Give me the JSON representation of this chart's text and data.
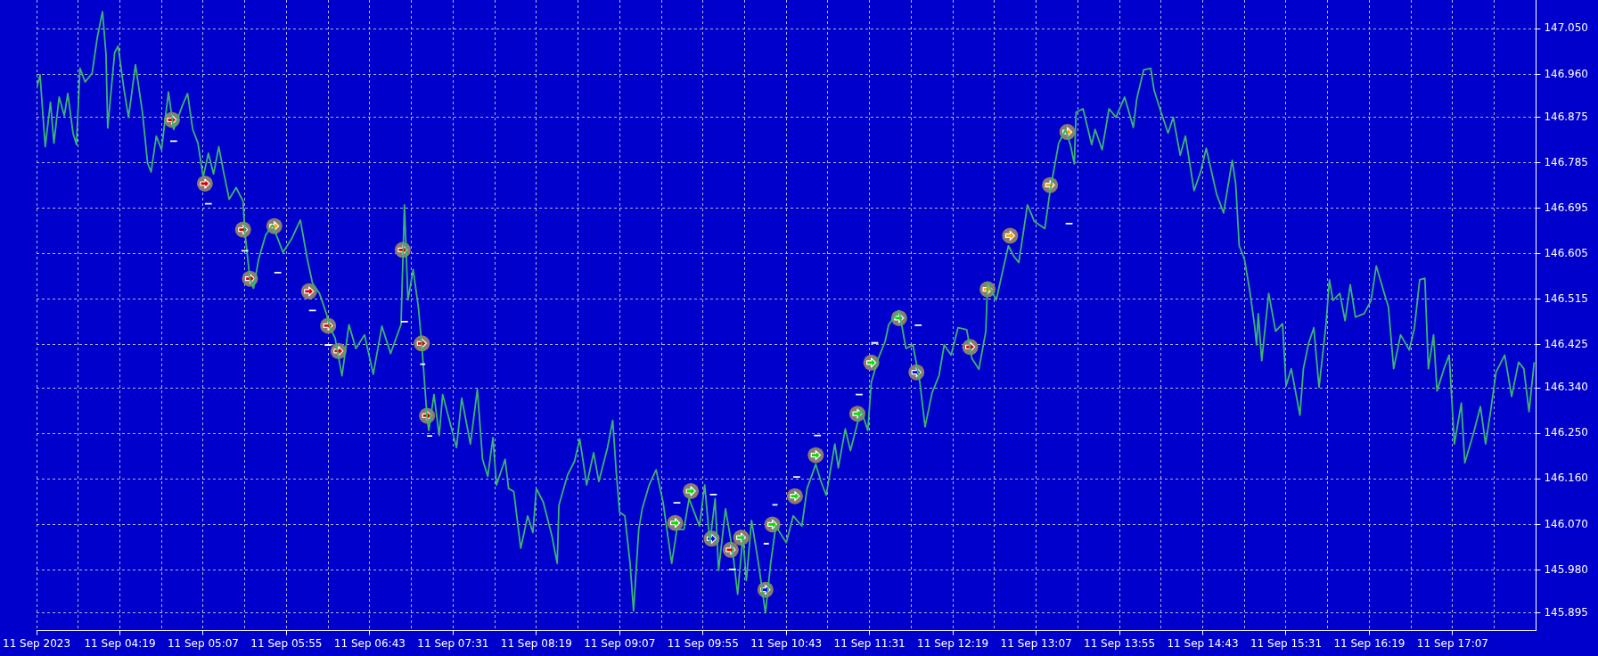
{
  "chart_data": {
    "type": "line",
    "xlim": [
      "2023-09-11T03:31",
      "2023-09-11T17:55"
    ],
    "xticks": [
      {
        "value": "2023-09-11T03:31",
        "label": "11 Sep 2023"
      },
      {
        "value": "2023-09-11T03:55",
        "label": null
      },
      {
        "value": "2023-09-11T04:19",
        "label": "11 Sep 04:19"
      },
      {
        "value": "2023-09-11T04:43",
        "label": null
      },
      {
        "value": "2023-09-11T05:07",
        "label": "11 Sep 05:07"
      },
      {
        "value": "2023-09-11T05:31",
        "label": null
      },
      {
        "value": "2023-09-11T05:55",
        "label": "11 Sep 05:55"
      },
      {
        "value": "2023-09-11T06:19",
        "label": null
      },
      {
        "value": "2023-09-11T06:43",
        "label": "11 Sep 06:43"
      },
      {
        "value": "2023-09-11T07:07",
        "label": null
      },
      {
        "value": "2023-09-11T07:31",
        "label": "11 Sep 07:31"
      },
      {
        "value": "2023-09-11T07:55",
        "label": null
      },
      {
        "value": "2023-09-11T08:19",
        "label": "11 Sep 08:19"
      },
      {
        "value": "2023-09-11T08:43",
        "label": null
      },
      {
        "value": "2023-09-11T09:07",
        "label": "11 Sep 09:07"
      },
      {
        "value": "2023-09-11T09:31",
        "label": null
      },
      {
        "value": "2023-09-11T09:55",
        "label": "11 Sep 09:55"
      },
      {
        "value": "2023-09-11T10:19",
        "label": null
      },
      {
        "value": "2023-09-11T10:43",
        "label": "11 Sep 10:43"
      },
      {
        "value": "2023-09-11T11:07",
        "label": null
      },
      {
        "value": "2023-09-11T11:31",
        "label": "11 Sep 11:31"
      },
      {
        "value": "2023-09-11T11:55",
        "label": null
      },
      {
        "value": "2023-09-11T12:19",
        "label": "11 Sep 12:19"
      },
      {
        "value": "2023-09-11T12:43",
        "label": null
      },
      {
        "value": "2023-09-11T13:07",
        "label": "11 Sep 13:07"
      },
      {
        "value": "2023-09-11T13:31",
        "label": null
      },
      {
        "value": "2023-09-11T13:55",
        "label": "11 Sep 13:55"
      },
      {
        "value": "2023-09-11T14:19",
        "label": null
      },
      {
        "value": "2023-09-11T14:43",
        "label": "11 Sep 14:43"
      },
      {
        "value": "2023-09-11T15:07",
        "label": null
      },
      {
        "value": "2023-09-11T15:31",
        "label": "11 Sep 15:31"
      },
      {
        "value": "2023-09-11T15:55",
        "label": null
      },
      {
        "value": "2023-09-11T16:19",
        "label": "11 Sep 16:19"
      },
      {
        "value": "2023-09-11T16:43",
        "label": null
      },
      {
        "value": "2023-09-11T17:07",
        "label": "11 Sep 17:07"
      },
      {
        "value": "2023-09-11T17:31",
        "label": null
      }
    ],
    "ylim": [
      145.86,
      147.107
    ],
    "yticks": [
      145.895,
      {
        "value": 145.98,
        "label": "145.980"
      },
      {
        "value": 146.07,
        "label": "146.070"
      },
      {
        "value": 146.16,
        "label": "146.160"
      },
      {
        "value": 146.25,
        "label": "146.250"
      },
      {
        "value": 146.34,
        "label": "146.340"
      },
      146.425,
      146.515,
      146.605,
      146.695,
      146.785,
      146.875,
      {
        "value": 146.96,
        "label": "146.960"
      },
      {
        "value": 147.05,
        "label": "147.050"
      }
    ],
    "grid": true,
    "x": [
      "2023-09-11T03:31",
      "2023-09-11T03:33",
      "2023-09-11T03:36",
      "2023-09-11T03:39",
      "2023-09-11T03:41",
      "2023-09-11T03:44",
      "2023-09-11T03:47",
      "2023-09-11T03:49",
      "2023-09-11T03:52",
      "2023-09-11T03:54",
      "2023-09-11T03:56",
      "2023-09-11T03:59",
      "2023-09-11T04:03",
      "2023-09-11T04:06",
      "2023-09-11T04:09",
      "2023-09-11T04:11",
      "2023-09-11T04:12",
      "2023-09-11T04:16",
      "2023-09-11T04:18",
      "2023-09-11T04:21",
      "2023-09-11T04:24",
      "2023-09-11T04:28",
      "2023-09-11T04:32",
      "2023-09-11T04:35",
      "2023-09-11T04:37",
      "2023-09-11T04:40",
      "2023-09-11T04:43",
      "2023-09-11T04:47",
      "2023-09-11T04:50",
      "2023-09-11T04:55",
      "2023-09-11T04:58",
      "2023-09-11T05:01",
      "2023-09-11T05:04",
      "2023-09-11T05:07",
      "2023-09-11T05:10",
      "2023-09-11T05:13",
      "2023-09-11T05:16",
      "2023-09-11T05:19",
      "2023-09-11T05:22",
      "2023-09-11T05:26",
      "2023-09-11T05:30",
      "2023-09-11T05:31",
      "2023-09-11T05:34",
      "2023-09-11T05:36",
      "2023-09-11T05:39",
      "2023-09-11T05:43",
      "2023-09-11T05:47",
      "2023-09-11T05:53",
      "2023-09-11T05:58",
      "2023-09-11T06:03",
      "2023-09-11T06:07",
      "2023-09-11T06:10",
      "2023-09-11T06:14",
      "2023-09-11T06:18",
      "2023-09-11T06:20",
      "2023-09-11T06:23",
      "2023-09-11T06:27",
      "2023-09-11T06:31",
      "2023-09-11T06:35",
      "2023-09-11T06:40",
      "2023-09-11T06:45",
      "2023-09-11T06:50",
      "2023-09-11T06:55",
      "2023-09-11T07:01",
      "2023-09-11T07:03",
      "2023-09-11T07:05",
      "2023-09-11T07:08",
      "2023-09-11T07:11",
      "2023-09-11T07:13",
      "2023-09-11T07:16",
      "2023-09-11T07:17",
      "2023-09-11T07:20",
      "2023-09-11T07:23",
      "2023-09-11T07:25",
      "2023-09-11T07:33",
      "2023-09-11T07:36",
      "2023-09-11T07:41",
      "2023-09-11T07:45",
      "2023-09-11T07:48",
      "2023-09-11T07:51",
      "2023-09-11T07:54",
      "2023-09-11T07:56",
      "2023-09-11T08:01",
      "2023-09-11T08:03",
      "2023-09-11T08:06",
      "2023-09-11T08:10",
      "2023-09-11T08:14",
      "2023-09-11T08:17",
      "2023-09-11T08:19",
      "2023-09-11T08:23",
      "2023-09-11T08:28",
      "2023-09-11T08:31",
      "2023-09-11T08:32",
      "2023-09-11T08:37",
      "2023-09-11T08:41",
      "2023-09-11T08:44",
      "2023-09-11T08:48",
      "2023-09-11T08:52",
      "2023-09-11T08:55",
      "2023-09-11T09:00",
      "2023-09-11T09:03",
      "2023-09-11T09:05",
      "2023-09-11T09:07",
      "2023-09-11T09:10",
      "2023-09-11T09:13",
      "2023-09-11T09:15",
      "2023-09-11T09:18",
      "2023-09-11T09:20",
      "2023-09-11T09:24",
      "2023-09-11T09:28",
      "2023-09-11T09:32",
      "2023-09-11T09:37",
      "2023-09-11T09:40",
      "2023-09-11T09:44",
      "2023-09-11T09:47",
      "2023-09-11T09:53",
      "2023-09-11T09:56",
      "2023-09-11T09:59",
      "2023-09-11T10:02",
      "2023-09-11T10:04",
      "2023-09-11T10:08",
      "2023-09-11T10:12",
      "2023-09-11T10:15",
      "2023-09-11T10:18",
      "2023-09-11T10:20",
      "2023-09-11T10:23",
      "2023-09-11T10:27",
      "2023-09-11T10:31",
      "2023-09-11T10:34",
      "2023-09-11T10:37",
      "2023-09-11T10:43",
      "2023-09-11T10:47",
      "2023-09-11T10:52",
      "2023-09-11T10:55",
      "2023-09-11T11:00",
      "2023-09-11T11:03",
      "2023-09-11T11:06",
      "2023-09-11T11:11",
      "2023-09-11T11:13",
      "2023-09-11T11:17",
      "2023-09-11T11:20",
      "2023-09-11T11:26",
      "2023-09-11T11:30",
      "2023-09-11T11:32",
      "2023-09-11T11:36",
      "2023-09-11T11:40",
      "2023-09-11T11:42",
      "2023-09-11T11:48",
      "2023-09-11T11:52",
      "2023-09-11T11:56",
      "2023-09-11T12:00",
      "2023-09-11T12:03",
      "2023-09-11T12:07",
      "2023-09-11T12:11",
      "2023-09-11T12:14",
      "2023-09-11T12:18",
      "2023-09-11T12:22",
      "2023-09-11T12:27",
      "2023-09-11T12:30",
      "2023-09-11T12:34",
      "2023-09-11T12:38",
      "2023-09-11T12:39",
      "2023-09-11T12:44",
      "2023-09-11T12:51",
      "2023-09-11T12:54",
      "2023-09-11T12:57",
      "2023-09-11T13:02",
      "2023-09-11T13:06",
      "2023-09-11T13:12",
      "2023-09-11T13:15",
      "2023-09-11T13:20",
      "2023-09-11T13:24",
      "2023-09-11T13:27",
      "2023-09-11T13:29",
      "2023-09-11T13:30",
      "2023-09-11T13:34",
      "2023-09-11T13:39",
      "2023-09-11T13:41",
      "2023-09-11T13:45",
      "2023-09-11T13:49",
      "2023-09-11T13:53",
      "2023-09-11T13:58",
      "2023-09-11T14:03",
      "2023-09-11T14:05",
      "2023-09-11T14:09",
      "2023-09-11T14:13",
      "2023-09-11T14:15",
      "2023-09-11T14:19",
      "2023-09-11T14:23",
      "2023-09-11T14:26",
      "2023-09-11T14:30",
      "2023-09-11T14:33",
      "2023-09-11T14:38",
      "2023-09-11T14:42",
      "2023-09-11T14:45",
      "2023-09-11T14:51",
      "2023-09-11T14:55",
      "2023-09-11T15:00",
      "2023-09-11T15:02",
      "2023-09-11T15:04",
      "2023-09-11T15:07",
      "2023-09-11T15:10",
      "2023-09-11T15:13",
      "2023-09-11T15:14",
      "2023-09-11T15:15",
      "2023-09-11T15:17",
      "2023-09-11T15:21",
      "2023-09-11T15:25",
      "2023-09-11T15:29",
      "2023-09-11T15:31",
      "2023-09-11T15:34",
      "2023-09-11T15:39",
      "2023-09-11T15:41",
      "2023-09-11T15:44",
      "2023-09-11T15:47",
      "2023-09-11T15:50",
      "2023-09-11T15:54",
      "2023-09-11T15:56",
      "2023-09-11T15:58",
      "2023-09-11T16:02",
      "2023-09-11T16:05",
      "2023-09-11T16:08",
      "2023-09-11T16:11",
      "2023-09-11T16:16",
      "2023-09-11T16:20",
      "2023-09-11T16:23",
      "2023-09-11T16:27",
      "2023-09-11T16:30",
      "2023-09-11T16:33",
      "2023-09-11T16:37",
      "2023-09-11T16:42",
      "2023-09-11T16:45",
      "2023-09-11T16:48",
      "2023-09-11T16:51",
      "2023-09-11T16:53",
      "2023-09-11T16:56",
      "2023-09-11T16:58",
      "2023-09-11T17:02",
      "2023-09-11T17:05",
      "2023-09-11T17:08",
      "2023-09-11T17:12",
      "2023-09-11T17:14",
      "2023-09-11T17:19",
      "2023-09-11T17:23",
      "2023-09-11T17:26",
      "2023-09-11T17:29",
      "2023-09-11T17:32",
      "2023-09-11T17:37",
      "2023-09-11T17:41",
      "2023-09-11T17:45",
      "2023-09-11T17:48",
      "2023-09-11T17:51",
      "2023-09-11T17:54"
    ],
    "series": [
      {
        "color": "#3cb371",
        "values": [
          146.932,
          146.959,
          146.817,
          146.905,
          146.824,
          146.915,
          146.878,
          146.922,
          146.844,
          146.821,
          146.972,
          146.945,
          146.962,
          147.033,
          147.084,
          147.0,
          146.854,
          147.003,
          147.016,
          146.939,
          146.875,
          146.979,
          146.885,
          146.784,
          146.767,
          146.838,
          146.811,
          146.925,
          146.851,
          146.898,
          146.922,
          146.851,
          146.824,
          146.757,
          146.804,
          146.763,
          146.817,
          146.763,
          146.713,
          146.736,
          146.709,
          146.649,
          146.554,
          146.537,
          146.595,
          146.642,
          146.662,
          146.608,
          146.635,
          146.672,
          146.595,
          146.547,
          146.527,
          146.487,
          146.46,
          146.439,
          146.364,
          146.465,
          146.418,
          146.445,
          146.367,
          146.462,
          146.408,
          146.465,
          146.702,
          146.514,
          146.574,
          146.5,
          146.425,
          146.283,
          146.256,
          146.327,
          146.246,
          146.327,
          146.222,
          146.32,
          146.229,
          146.337,
          146.199,
          146.165,
          146.242,
          146.148,
          146.199,
          146.141,
          146.135,
          146.023,
          146.087,
          146.054,
          146.141,
          146.114,
          146.047,
          145.993,
          146.108,
          146.168,
          146.195,
          146.239,
          146.148,
          146.212,
          146.155,
          146.222,
          146.276,
          146.175,
          146.094,
          146.087,
          145.993,
          145.899,
          146.06,
          146.101,
          146.148,
          146.178,
          146.114,
          145.993,
          146.06,
          146.06,
          146.121,
          146.067,
          146.148,
          146.034,
          146.121,
          145.979,
          146.101,
          146.02,
          145.932,
          146.047,
          145.959,
          146.078,
          145.993,
          145.895,
          145.993,
          146.067,
          146.034,
          146.087,
          146.067,
          146.141,
          146.189,
          146.155,
          146.128,
          146.229,
          146.182,
          146.259,
          146.216,
          146.297,
          146.256,
          146.351,
          146.398,
          146.432,
          146.465,
          146.493,
          146.418,
          146.425,
          146.351,
          146.263,
          146.33,
          146.364,
          146.425,
          146.405,
          146.459,
          146.455,
          146.398,
          146.377,
          146.452,
          146.548,
          146.514,
          146.621,
          146.601,
          146.588,
          146.702,
          146.669,
          146.655,
          146.729,
          146.824,
          146.851,
          146.817,
          146.783,
          146.885,
          146.892,
          146.821,
          146.851,
          146.811,
          146.892,
          146.875,
          146.915,
          146.855,
          146.912,
          146.969,
          146.972,
          146.928,
          146.885,
          146.844,
          146.875,
          146.8,
          146.838,
          146.73,
          146.77,
          146.814,
          146.723,
          146.686,
          146.79,
          146.743,
          146.621,
          146.595,
          146.534,
          146.46,
          146.425,
          146.487,
          146.394,
          146.527,
          146.452,
          146.467,
          146.344,
          146.378,
          146.286,
          146.378,
          146.428,
          146.459,
          146.341,
          146.465,
          146.554,
          146.513,
          146.527,
          146.473,
          146.544,
          146.48,
          146.487,
          146.513,
          146.581,
          146.534,
          146.5,
          146.378,
          146.445,
          146.415,
          146.459,
          146.554,
          146.557,
          146.378,
          146.445,
          146.334,
          146.378,
          146.405,
          146.229,
          146.31,
          146.192,
          146.25,
          146.303,
          146.229,
          146.297,
          146.371,
          146.405,
          146.323,
          146.391,
          146.378,
          146.293,
          146.391
        ]
      },
      {
        "type": "line",
        "color": "#ffffff",
        "x": [
          "2023-09-11T04:48",
          "2023-09-11T04:52",
          null,
          "2023-09-11T05:08",
          "2023-09-11T05:12",
          null,
          "2023-09-11T05:29",
          "2023-09-11T05:33",
          null,
          "2023-09-11T05:48",
          "2023-09-11T05:52",
          null,
          "2023-09-11T06:08",
          "2023-09-11T06:12",
          null,
          "2023-09-11T06:17",
          "2023-09-11T06:21",
          null,
          "2023-09-11T07:01",
          "2023-09-11T07:05",
          null,
          "2023-09-11T07:12",
          "2023-09-11T07:15",
          null,
          "2023-09-11T07:16",
          "2023-09-11T07:19",
          null,
          "2023-09-11T09:38",
          "2023-09-11T09:42",
          null,
          "2023-09-11T09:59",
          "2023-09-11T10:03",
          null,
          "2023-09-11T10:10",
          "2023-09-11T10:14",
          null,
          "2023-09-11T10:30",
          "2023-09-11T10:33",
          null,
          "2023-09-11T10:35",
          "2023-09-11T10:38",
          null,
          "2023-09-11T10:47",
          "2023-09-11T10:51",
          null,
          "2023-09-11T10:59",
          "2023-09-11T11:03",
          null,
          "2023-09-11T11:23",
          "2023-09-11T11:27",
          null,
          "2023-09-11T11:32",
          "2023-09-11T11:36",
          null,
          "2023-09-11T11:57",
          "2023-09-11T12:01",
          null,
          "2023-09-11T13:24",
          "2023-09-11T13:28"
        ],
        "values": [
          146.828,
          146.828,
          null,
          146.704,
          146.704,
          null,
          146.611,
          146.611,
          null,
          146.568,
          146.568,
          null,
          146.493,
          146.493,
          null,
          146.425,
          146.425,
          null,
          146.471,
          146.471,
          null,
          146.387,
          146.387,
          null,
          146.245,
          146.245,
          null,
          146.113,
          146.113,
          null,
          146.129,
          146.129,
          null,
          145.981,
          145.981,
          null,
          146.032,
          146.032,
          null,
          146.109,
          146.109,
          null,
          146.164,
          146.164,
          null,
          146.246,
          146.246,
          null,
          146.327,
          146.327,
          null,
          146.429,
          146.429,
          null,
          146.464,
          146.464,
          null,
          146.665,
          146.665
        ]
      },
      {
        "type": "scatter",
        "color": "#e00000",
        "marker": "circle",
        "x": [
          "2023-09-11T04:49",
          "2023-09-11T05:08",
          "2023-09-11T05:30",
          "2023-09-11T05:34",
          "2023-09-11T06:08",
          "2023-09-11T06:19",
          "2023-09-11T06:25",
          "2023-09-11T07:02",
          "2023-09-11T07:13",
          "2023-09-11T07:16",
          "2023-09-11T10:11",
          "2023-09-11T12:29"
        ],
        "values": [
          146.87,
          146.744,
          146.653,
          146.556,
          146.531,
          146.463,
          146.413,
          146.613,
          146.428,
          146.285,
          146.02,
          146.421
        ]
      },
      {
        "type": "scatter",
        "color": "#00e000",
        "marker": "circle",
        "x": [
          "2023-09-11T09:39",
          "2023-09-11T09:48",
          "2023-09-11T10:17",
          "2023-09-11T10:35",
          "2023-09-11T10:48",
          "2023-09-11T11:00",
          "2023-09-11T11:24",
          "2023-09-11T11:32",
          "2023-09-11T11:48"
        ],
        "values": [
          146.073,
          146.136,
          146.044,
          146.07,
          146.126,
          146.207,
          146.289,
          146.39,
          146.478
        ]
      },
      {
        "type": "scatter",
        "color": "#0000ff",
        "marker": "circle",
        "x": [
          "2023-09-11T10:00",
          "2023-09-11T10:31",
          "2023-09-11T11:58"
        ],
        "values": [
          146.042,
          145.941,
          146.371
        ]
      },
      {
        "type": "scatter",
        "color": "#ffa500",
        "marker": "circle",
        "x": [
          "2023-09-11T05:48",
          "2023-09-11T12:39",
          "2023-09-11T12:52",
          "2023-09-11T13:15",
          "2023-09-11T13:25"
        ],
        "values": [
          146.66,
          146.535,
          146.641,
          146.741,
          146.846
        ]
      }
    ]
  }
}
